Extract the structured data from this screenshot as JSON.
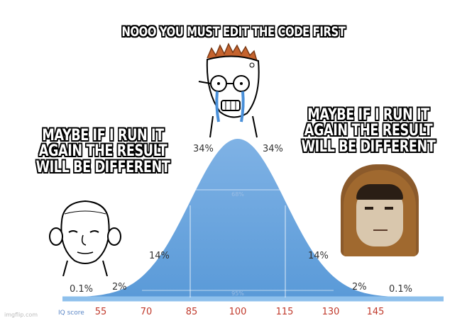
{
  "captions": {
    "top": "NOOO YOU MUST EDIT THE CODE FIRST",
    "left": "MAYBE IF I RUN IT AGAIN THE RESULT WILL BE DIFFERENT",
    "right": "MAYBE IF I RUN IT AGAIN THE RESULT WILL BE DIFFERENT"
  },
  "bell_curve": {
    "percentages": {
      "left_tail": "0.1%",
      "left_2": "2%",
      "left_14": "14%",
      "left_34": "34%",
      "right_34": "34%",
      "right_14": "14%",
      "right_2": "2%",
      "right_tail": "0.1%",
      "inner_68": "68%",
      "inner_95": "95%"
    },
    "axis_label": "IQ score",
    "ticks": [
      "55",
      "70",
      "85",
      "100",
      "115",
      "130",
      "145"
    ],
    "curve_color": "#7fb2e5"
  },
  "characters": {
    "left": "simple-wojak-face",
    "center": "crying-wojak-with-glasses",
    "right": "hooded-monk-face"
  },
  "watermark": "imgflip.com"
}
